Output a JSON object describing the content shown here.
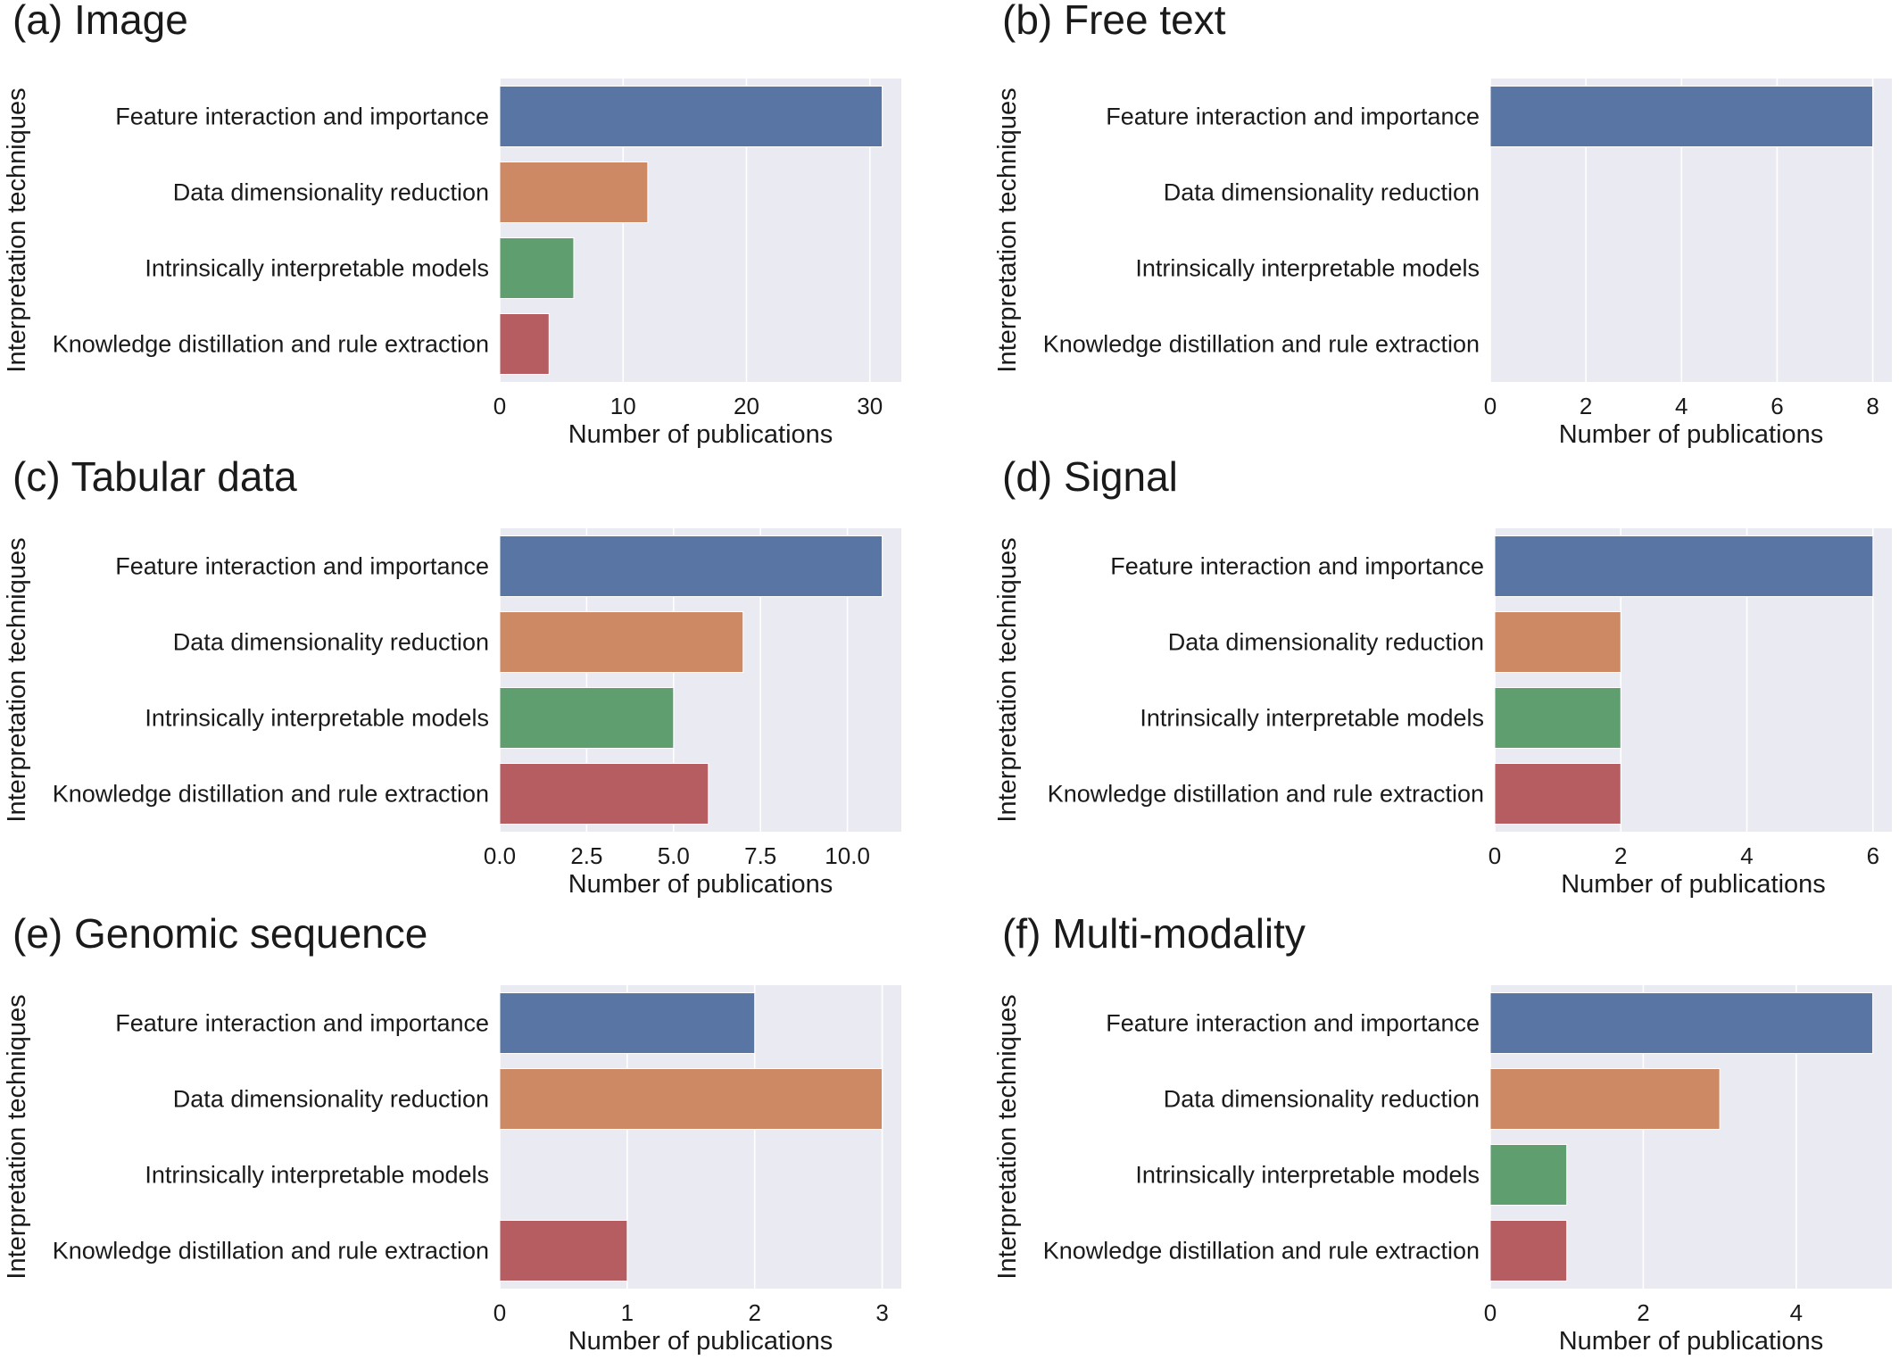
{
  "chart_data": [
    {
      "type": "bar",
      "title": "(a) Image",
      "xlabel": "Number of publications",
      "ylabel": "Interpretation techniques",
      "categories": [
        "Feature interaction and importance",
        "Data dimensionality reduction",
        "Intrinsically interpretable models",
        "Knowledge distillation and rule extraction"
      ],
      "values": [
        31,
        12,
        6,
        4
      ],
      "xlim": [
        0,
        32.55
      ],
      "xticks": [
        0,
        10,
        20,
        30
      ],
      "xtick_labels": [
        "0",
        "10",
        "20",
        "30"
      ],
      "orientation": "horizontal",
      "grid": true
    },
    {
      "type": "bar",
      "title": "(b) Free text",
      "xlabel": "Number of publications",
      "ylabel": "Interpretation techniques",
      "categories": [
        "Feature interaction and importance",
        "Data dimensionality reduction",
        "Intrinsically interpretable models",
        "Knowledge distillation and rule extraction"
      ],
      "values": [
        8,
        0,
        0,
        0
      ],
      "xlim": [
        0,
        8.4
      ],
      "xticks": [
        0,
        2,
        4,
        6,
        8
      ],
      "xtick_labels": [
        "0",
        "2",
        "4",
        "6",
        "8"
      ],
      "orientation": "horizontal",
      "grid": true
    },
    {
      "type": "bar",
      "title": "(c) Tabular data",
      "xlabel": "Number of publications",
      "ylabel": "Interpretation techniques",
      "categories": [
        "Feature interaction and importance",
        "Data dimensionality reduction",
        "Intrinsically interpretable models",
        "Knowledge distillation and rule extraction"
      ],
      "values": [
        11,
        7,
        5,
        6
      ],
      "xlim": [
        0,
        11.55
      ],
      "xticks": [
        0,
        2.5,
        5,
        7.5,
        10
      ],
      "xtick_labels": [
        "0.0",
        "2.5",
        "5.0",
        "7.5",
        "10.0"
      ],
      "orientation": "horizontal",
      "grid": true
    },
    {
      "type": "bar",
      "title": "(d) Signal",
      "xlabel": "Number of publications",
      "ylabel": "Interpretation techniques",
      "categories": [
        "Feature interaction and importance",
        "Data dimensionality reduction",
        "Intrinsically interpretable models",
        "Knowledge distillation and rule extraction"
      ],
      "values": [
        6,
        2,
        2,
        2
      ],
      "xlim": [
        0,
        6.3
      ],
      "xticks": [
        0,
        2,
        4,
        6
      ],
      "xtick_labels": [
        "0",
        "2",
        "4",
        "6"
      ],
      "orientation": "horizontal",
      "grid": true
    },
    {
      "type": "bar",
      "title": "(e) Genomic sequence",
      "xlabel": "Number of publications",
      "ylabel": "Interpretation techniques",
      "categories": [
        "Feature interaction and importance",
        "Data dimensionality reduction",
        "Intrinsically interpretable models",
        "Knowledge distillation and rule extraction"
      ],
      "values": [
        2,
        3,
        0,
        1
      ],
      "xlim": [
        0,
        3.15
      ],
      "xticks": [
        0,
        1,
        2,
        3
      ],
      "xtick_labels": [
        "0",
        "1",
        "2",
        "3"
      ],
      "orientation": "horizontal",
      "grid": true
    },
    {
      "type": "bar",
      "title": "(f) Multi-modality",
      "xlabel": "Number of publications",
      "ylabel": "Interpretation techniques",
      "categories": [
        "Feature interaction and importance",
        "Data dimensionality reduction",
        "Intrinsically interpretable models",
        "Knowledge distillation and rule extraction"
      ],
      "values": [
        5,
        3,
        1,
        1
      ],
      "xlim": [
        0,
        5.25
      ],
      "xticks": [
        0,
        2,
        4
      ],
      "xtick_labels": [
        "0",
        "2",
        "4"
      ],
      "orientation": "horizontal",
      "grid": true
    }
  ],
  "colors": {
    "bars": [
      "#5875a4",
      "#cc8963",
      "#5f9e6e",
      "#b55d60"
    ],
    "plot_background": "#eaeaf2",
    "grid": "#ffffff",
    "text": "#1a1a1a"
  }
}
